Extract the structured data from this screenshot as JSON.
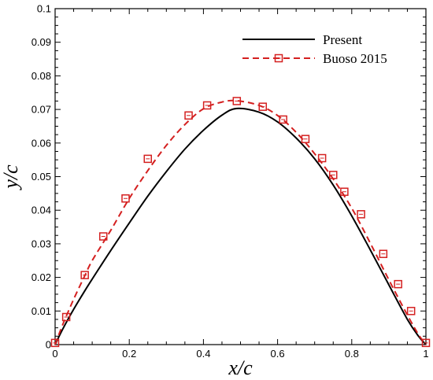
{
  "chart_data": {
    "type": "line",
    "xlabel": "x/c",
    "ylabel": "y/c",
    "xlim": [
      0,
      1
    ],
    "ylim": [
      0,
      0.1
    ],
    "xticks": [
      "0",
      "0.2",
      "0.4",
      "0.6",
      "0.8",
      "1"
    ],
    "yticks": [
      "0",
      "0.01",
      "0.02",
      "0.03",
      "0.04",
      "0.05",
      "0.06",
      "0.07",
      "0.08",
      "0.09",
      "0.1"
    ],
    "grid": false,
    "legend_position": "top-right",
    "series": [
      {
        "name": "Present",
        "style": "solid",
        "marker": "none",
        "color": "#000000",
        "x": [
          0,
          0.02,
          0.05,
          0.08,
          0.1,
          0.15,
          0.2,
          0.25,
          0.3,
          0.35,
          0.4,
          0.45,
          0.49,
          0.55,
          0.6,
          0.65,
          0.7,
          0.75,
          0.8,
          0.85,
          0.9,
          0.95,
          0.98,
          1.0
        ],
        "y": [
          0,
          0.0045,
          0.0105,
          0.016,
          0.0195,
          0.028,
          0.0362,
          0.0442,
          0.0515,
          0.0582,
          0.0638,
          0.0683,
          0.0703,
          0.0692,
          0.0663,
          0.0615,
          0.0553,
          0.0475,
          0.0383,
          0.0282,
          0.0178,
          0.0075,
          0.0025,
          0
        ]
      },
      {
        "name": "Buoso 2015",
        "style": "dashed",
        "marker": "square",
        "color": "#d42020",
        "x": [
          0,
          0.03,
          0.08,
          0.13,
          0.19,
          0.25,
          0.36,
          0.41,
          0.49,
          0.56,
          0.615,
          0.675,
          0.72,
          0.75,
          0.78,
          0.825,
          0.885,
          0.925,
          0.96,
          1.0
        ],
        "y": [
          0.0005,
          0.0082,
          0.0207,
          0.0322,
          0.0435,
          0.0553,
          0.0682,
          0.0712,
          0.0725,
          0.0708,
          0.067,
          0.0612,
          0.0555,
          0.0505,
          0.0455,
          0.0388,
          0.027,
          0.018,
          0.01,
          0.0005
        ],
        "curve_x": [
          0,
          0.02,
          0.05,
          0.08,
          0.1,
          0.15,
          0.2,
          0.25,
          0.3,
          0.35,
          0.4,
          0.45,
          0.49,
          0.55,
          0.6,
          0.65,
          0.7,
          0.75,
          0.8,
          0.85,
          0.9,
          0.95,
          0.98,
          1.0
        ],
        "curve_y": [
          0,
          0.0058,
          0.0135,
          0.0205,
          0.025,
          0.034,
          0.0435,
          0.0518,
          0.0593,
          0.0655,
          0.0702,
          0.0722,
          0.0726,
          0.0712,
          0.0682,
          0.0632,
          0.0568,
          0.0493,
          0.0406,
          0.0302,
          0.0193,
          0.0088,
          0.003,
          0
        ]
      }
    ]
  }
}
